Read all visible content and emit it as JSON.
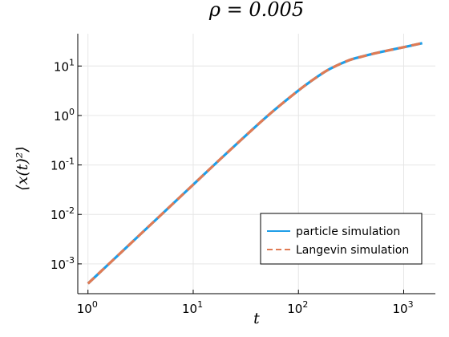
{
  "chart_data": {
    "type": "line",
    "title": "ρ = 0.005",
    "xlabel": "t",
    "ylabel": "⟨x(t)²⟩",
    "xscale": "log",
    "yscale": "log",
    "xlim": [
      0.8,
      2000
    ],
    "ylim": [
      0.00025,
      45
    ],
    "grid": true,
    "legend_position": "bottom-right",
    "x_ticks": [
      {
        "value": 1,
        "base": "10",
        "exp": "0"
      },
      {
        "value": 10,
        "base": "10",
        "exp": "1"
      },
      {
        "value": 100,
        "base": "10",
        "exp": "2"
      },
      {
        "value": 1000,
        "base": "10",
        "exp": "3"
      }
    ],
    "y_ticks": [
      {
        "value": 0.001,
        "base": "10",
        "exp": "-3"
      },
      {
        "value": 0.01,
        "base": "10",
        "exp": "-2"
      },
      {
        "value": 0.1,
        "base": "10",
        "exp": "-1"
      },
      {
        "value": 1,
        "base": "10",
        "exp": "0"
      },
      {
        "value": 10,
        "base": "10",
        "exp": "1"
      }
    ],
    "series": [
      {
        "name": "particle simulation",
        "color": "#1f9ee8",
        "style": "solid",
        "x": [
          1,
          2,
          5,
          10,
          20,
          50,
          100,
          150,
          200,
          300,
          400,
          500,
          700,
          1000,
          1500
        ],
        "y": [
          0.0004,
          0.0016,
          0.01,
          0.04,
          0.16,
          0.95,
          3.2,
          6.0,
          8.8,
          13.0,
          15.5,
          17.5,
          20.5,
          24.0,
          29.0
        ]
      },
      {
        "name": "Langevin simulation",
        "color": "#e07b54",
        "style": "dashed",
        "x": [
          1,
          2,
          5,
          10,
          20,
          50,
          100,
          150,
          200,
          300,
          400,
          500,
          700,
          1000,
          1500
        ],
        "y": [
          0.0004,
          0.0016,
          0.01,
          0.04,
          0.16,
          0.95,
          3.2,
          6.0,
          8.8,
          13.0,
          15.5,
          17.5,
          20.5,
          24.0,
          29.0
        ]
      }
    ]
  }
}
